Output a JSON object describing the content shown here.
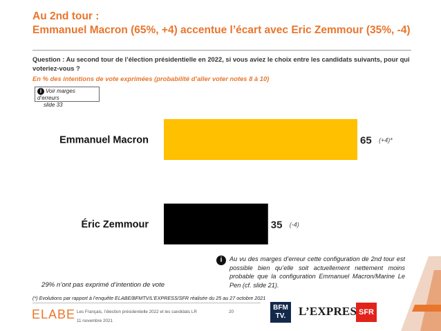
{
  "header": {
    "title_line1": "Au 2nd tour :",
    "title_line2": "Emmanuel Macron (65%, +4) accentue l’écart avec Eric Zemmour (35%, -4)"
  },
  "question": {
    "text": "Question : Au second tour de l’élection présidentielle en 2022, si vous aviez le choix entre les candidats suivants, pour qui voteriez-vous ?",
    "subtext": "En % des intentions de vote exprimées (probabilité d’aller voter notes 8 à 10)"
  },
  "margin_note": {
    "icon": "info-icon",
    "line1": "Voir marges d’erreurs",
    "line2": "slide 33"
  },
  "chart_data": {
    "type": "bar",
    "orientation": "horizontal",
    "categories": [
      "Emmanuel Macron",
      "Éric Zemmour"
    ],
    "values": [
      65,
      35
    ],
    "value_labels": [
      "65",
      "35"
    ],
    "deltas": [
      "(+4)*",
      "(-4)"
    ],
    "colors": [
      "#ffc000",
      "#000000"
    ],
    "xlim": [
      0,
      65
    ]
  },
  "info_note": {
    "icon": "info-icon",
    "text": "Au vu des marges d’erreur cette configuration de 2nd tour est possible bien qu’elle soit actuellement nettement moins probable que la configuration Emmanuel Macron/Marine Le Pen (cf. slide 21)."
  },
  "non_expressed": "29% n’ont pas exprimé d’intention de vote",
  "evolution_note": "(*) Evolutions par rapport à l’enquête ELABE/BFMTV/L’EXPRESS/SFR réalisée du 25 au 27 octobre 2021",
  "footer": {
    "logo": "ELABE",
    "study": "Les Français, l’élection présidentielle 2022 et les candidats LR",
    "date": "11 novembre 2021",
    "page": "20"
  },
  "partners": {
    "bfm_line1": "BFM",
    "bfm_line2": "TV.",
    "lexpress": "L’EXPRESS",
    "sfr": "SFR"
  },
  "colors": {
    "accent": "#e8762d",
    "macron": "#ffc000",
    "zemmour": "#000000"
  }
}
